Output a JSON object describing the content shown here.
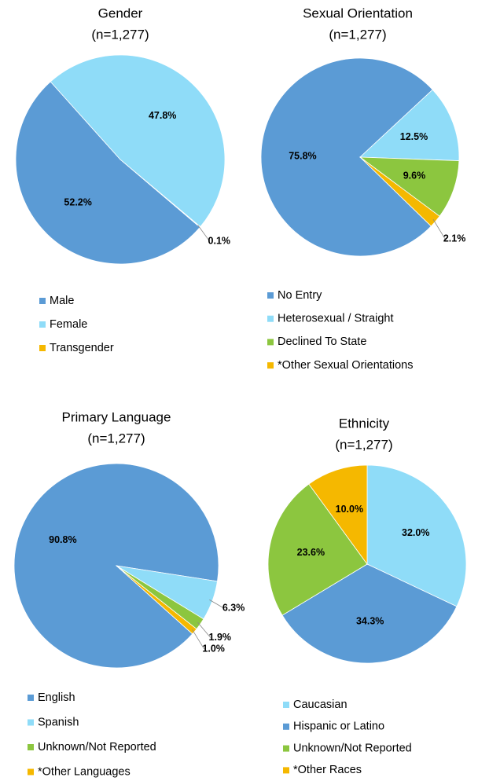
{
  "chart_data": [
    {
      "type": "pie",
      "title": "Gender",
      "subtitle": "(n=1,277)",
      "categories": [
        "Male",
        "Female",
        "Transgender"
      ],
      "values": [
        52.2,
        47.8,
        0.1
      ],
      "value_labels": [
        "52.2%",
        "47.8%",
        "0.1%"
      ],
      "colors": [
        "#5b9bd5",
        "#8fdcf8",
        "#f5b800"
      ]
    },
    {
      "type": "pie",
      "title": "Sexual Orientation",
      "subtitle": "(n=1,277)",
      "categories": [
        "No Entry",
        "Heterosexual / Straight",
        "Declined To State",
        "*Other Sexual Orientations"
      ],
      "values": [
        75.8,
        12.5,
        9.6,
        2.1
      ],
      "value_labels": [
        "75.8%",
        "12.5%",
        "9.6%",
        "2.1%"
      ],
      "colors": [
        "#5b9bd5",
        "#8fdcf8",
        "#8cc63f",
        "#f5b800"
      ]
    },
    {
      "type": "pie",
      "title": "Primary Language",
      "subtitle": "(n=1,277)",
      "categories": [
        "English",
        "Spanish",
        "Unknown/Not Reported",
        "*Other Languages"
      ],
      "values": [
        90.8,
        6.3,
        1.9,
        1.0
      ],
      "value_labels": [
        "90.8%",
        "6.3%",
        "1.9%",
        "1.0%"
      ],
      "colors": [
        "#5b9bd5",
        "#8fdcf8",
        "#8cc63f",
        "#f5b800"
      ]
    },
    {
      "type": "pie",
      "title": "Ethnicity",
      "subtitle": "(n=1,277)",
      "categories": [
        "Caucasian",
        "Hispanic or Latino",
        "Unknown/Not Reported",
        "*Other Races"
      ],
      "values": [
        32.0,
        34.3,
        23.6,
        10.0
      ],
      "value_labels": [
        "32.0%",
        "34.3%",
        "23.6%",
        "10.0%"
      ],
      "colors": [
        "#8fdcf8",
        "#5b9bd5",
        "#8cc63f",
        "#f5b800"
      ]
    }
  ]
}
